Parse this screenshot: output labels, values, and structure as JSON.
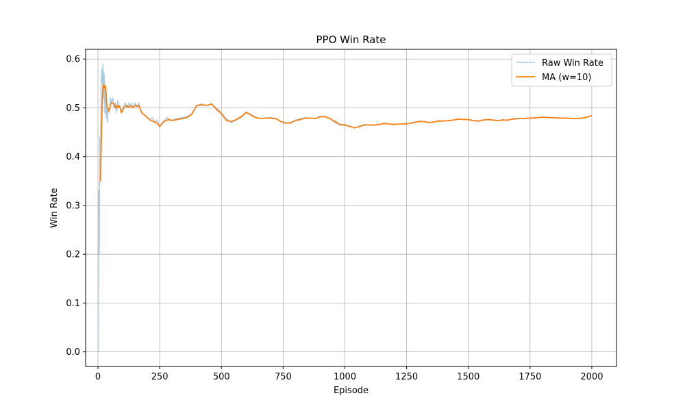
{
  "chart_data": {
    "type": "line",
    "title": "PPO Win Rate",
    "xlabel": "Episode",
    "ylabel": "Win Rate",
    "xlim": [
      -50,
      2100
    ],
    "ylim": [
      -0.03,
      0.62
    ],
    "xticks": [
      0,
      250,
      500,
      750,
      1000,
      1250,
      1500,
      1750,
      2000
    ],
    "yticks": [
      0.0,
      0.1,
      0.2,
      0.3,
      0.4,
      0.5,
      0.6
    ],
    "ytick_labels": [
      "0.0",
      "0.1",
      "0.2",
      "0.3",
      "0.4",
      "0.5",
      "0.6"
    ],
    "grid": true,
    "legend_position": "top-right",
    "series": [
      {
        "name": "Raw Win Rate",
        "color": "#a9cce3",
        "x": [
          1,
          3,
          5,
          8,
          10,
          13,
          15,
          18,
          20,
          23,
          25,
          28,
          30,
          33,
          35,
          38,
          40,
          43,
          45,
          48,
          50,
          55,
          60,
          65,
          70,
          75,
          80,
          85,
          90,
          95,
          100,
          105,
          110,
          115,
          120,
          125,
          130,
          135,
          140,
          145,
          150,
          155,
          160,
          165,
          170,
          175,
          180,
          190,
          200,
          210,
          220,
          230,
          240,
          250,
          260,
          270,
          280,
          290,
          300,
          320,
          340,
          360,
          380,
          400,
          420,
          440,
          460,
          480,
          500,
          520,
          540,
          560,
          580,
          600,
          620,
          640,
          660,
          680,
          700,
          720,
          740,
          760,
          780,
          800,
          820,
          840,
          860,
          880,
          900,
          920,
          940,
          960,
          980,
          1000,
          1020,
          1040,
          1060,
          1080,
          1100,
          1120,
          1140,
          1160,
          1180,
          1200,
          1220,
          1240,
          1260,
          1280,
          1300,
          1320,
          1340,
          1360,
          1380,
          1400,
          1420,
          1440,
          1460,
          1480,
          1500,
          1520,
          1540,
          1560,
          1580,
          1600,
          1620,
          1640,
          1660,
          1680,
          1700,
          1720,
          1740,
          1760,
          1780,
          1800,
          1820,
          1840,
          1860,
          1880,
          1900,
          1920,
          1940,
          1960,
          1980,
          2000
        ],
        "values": [
          0.0,
          0.33,
          0.2,
          0.44,
          0.36,
          0.54,
          0.58,
          0.55,
          0.59,
          0.52,
          0.57,
          0.49,
          0.54,
          0.48,
          0.51,
          0.47,
          0.5,
          0.5,
          0.49,
          0.5,
          0.52,
          0.51,
          0.52,
          0.5,
          0.51,
          0.49,
          0.515,
          0.5,
          0.505,
          0.49,
          0.5,
          0.505,
          0.51,
          0.5,
          0.505,
          0.51,
          0.5,
          0.51,
          0.505,
          0.5,
          0.51,
          0.5,
          0.505,
          0.51,
          0.5,
          0.49,
          0.49,
          0.485,
          0.48,
          0.475,
          0.48,
          0.47,
          0.475,
          0.46,
          0.47,
          0.475,
          0.48,
          0.475,
          0.475,
          0.478,
          0.48,
          0.482,
          0.488,
          0.505,
          0.508,
          0.505,
          0.508,
          0.5,
          0.49,
          0.478,
          0.47,
          0.475,
          0.48,
          0.49,
          0.487,
          0.48,
          0.478,
          0.479,
          0.48,
          0.478,
          0.472,
          0.468,
          0.47,
          0.475,
          0.478,
          0.48,
          0.479,
          0.478,
          0.483,
          0.482,
          0.478,
          0.47,
          0.465,
          0.464,
          0.462,
          0.459,
          0.463,
          0.466,
          0.465,
          0.464,
          0.466,
          0.469,
          0.467,
          0.466,
          0.467,
          0.467,
          0.468,
          0.471,
          0.473,
          0.472,
          0.469,
          0.471,
          0.474,
          0.473,
          0.474,
          0.475,
          0.478,
          0.476,
          0.476,
          0.474,
          0.472,
          0.475,
          0.477,
          0.475,
          0.474,
          0.476,
          0.474,
          0.478,
          0.479,
          0.478,
          0.479,
          0.48,
          0.48,
          0.481,
          0.481,
          0.48,
          0.48,
          0.479,
          0.479,
          0.479,
          0.478,
          0.479,
          0.481,
          0.484
        ]
      },
      {
        "name": "MA (w=10)",
        "color": "#ff7f0e",
        "x": [
          10,
          13,
          15,
          18,
          20,
          23,
          25,
          28,
          30,
          33,
          35,
          38,
          40,
          43,
          45,
          48,
          50,
          55,
          60,
          65,
          70,
          75,
          80,
          85,
          90,
          95,
          100,
          105,
          110,
          115,
          120,
          125,
          130,
          135,
          140,
          145,
          150,
          155,
          160,
          165,
          170,
          175,
          180,
          190,
          200,
          210,
          220,
          230,
          240,
          250,
          260,
          270,
          280,
          290,
          300,
          320,
          340,
          360,
          380,
          400,
          420,
          440,
          460,
          480,
          500,
          520,
          540,
          560,
          580,
          600,
          620,
          640,
          660,
          680,
          700,
          720,
          740,
          760,
          780,
          800,
          820,
          840,
          860,
          880,
          900,
          920,
          940,
          960,
          980,
          1000,
          1020,
          1040,
          1060,
          1080,
          1100,
          1120,
          1140,
          1160,
          1180,
          1200,
          1220,
          1240,
          1260,
          1280,
          1300,
          1320,
          1340,
          1360,
          1380,
          1400,
          1420,
          1440,
          1460,
          1480,
          1500,
          1520,
          1540,
          1560,
          1580,
          1600,
          1620,
          1640,
          1660,
          1680,
          1700,
          1720,
          1740,
          1760,
          1780,
          1800,
          1820,
          1840,
          1860,
          1880,
          1900,
          1920,
          1940,
          1960,
          1980,
          2000
        ],
        "values": [
          0.349,
          0.42,
          0.47,
          0.52,
          0.543,
          0.548,
          0.54,
          0.545,
          0.545,
          0.53,
          0.51,
          0.5,
          0.498,
          0.493,
          0.495,
          0.5,
          0.506,
          0.51,
          0.51,
          0.508,
          0.5,
          0.505,
          0.5,
          0.505,
          0.5,
          0.49,
          0.495,
          0.5,
          0.503,
          0.505,
          0.502,
          0.502,
          0.505,
          0.503,
          0.5,
          0.502,
          0.505,
          0.505,
          0.503,
          0.505,
          0.5,
          0.493,
          0.488,
          0.485,
          0.48,
          0.475,
          0.473,
          0.471,
          0.468,
          0.462,
          0.468,
          0.473,
          0.475,
          0.476,
          0.474,
          0.476,
          0.478,
          0.48,
          0.487,
          0.505,
          0.506,
          0.505,
          0.508,
          0.497,
          0.488,
          0.474,
          0.472,
          0.476,
          0.482,
          0.491,
          0.485,
          0.48,
          0.478,
          0.479,
          0.479,
          0.478,
          0.472,
          0.469,
          0.469,
          0.474,
          0.476,
          0.479,
          0.479,
          0.478,
          0.482,
          0.482,
          0.478,
          0.472,
          0.466,
          0.465,
          0.462,
          0.459,
          0.462,
          0.465,
          0.465,
          0.465,
          0.466,
          0.468,
          0.467,
          0.466,
          0.467,
          0.467,
          0.468,
          0.47,
          0.472,
          0.472,
          0.47,
          0.471,
          0.473,
          0.473,
          0.474,
          0.475,
          0.477,
          0.476,
          0.476,
          0.474,
          0.473,
          0.475,
          0.476,
          0.475,
          0.474,
          0.475,
          0.475,
          0.477,
          0.478,
          0.478,
          0.479,
          0.479,
          0.48,
          0.481,
          0.48,
          0.48,
          0.479,
          0.479,
          0.479,
          0.478,
          0.478,
          0.479,
          0.481,
          0.484
        ]
      }
    ]
  }
}
